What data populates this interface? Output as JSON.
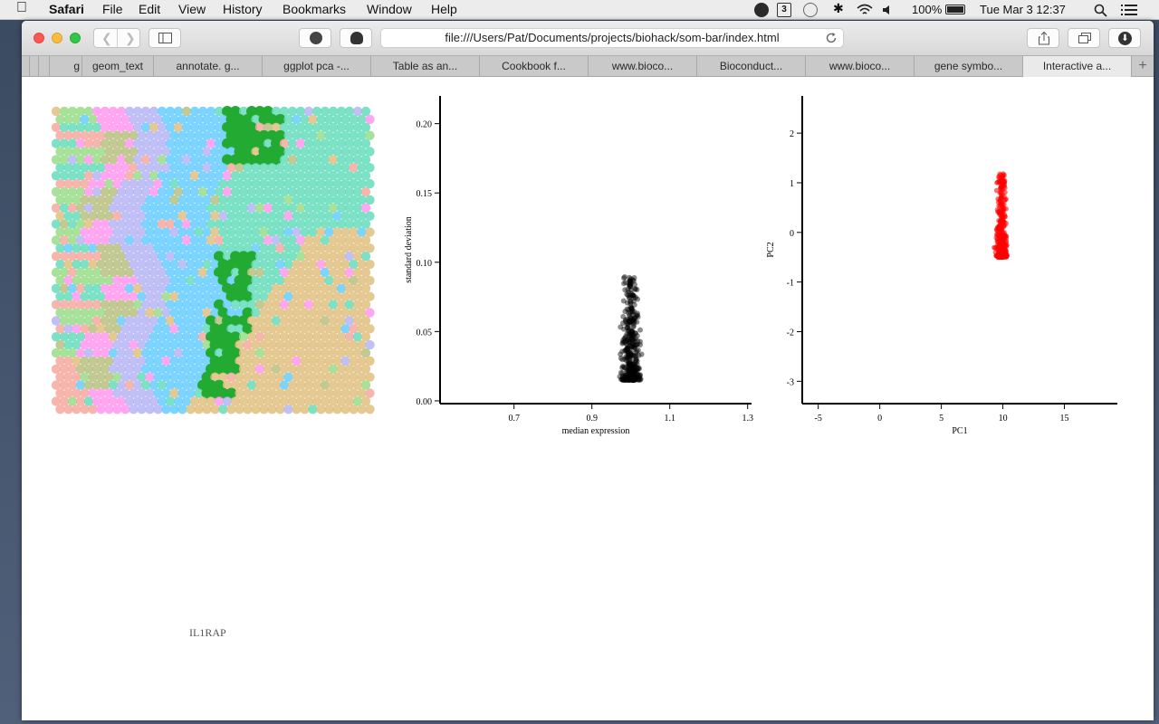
{
  "menubar": {
    "app": "Safari",
    "items": [
      "File",
      "Edit",
      "View",
      "History",
      "Bookmarks",
      "Window",
      "Help"
    ],
    "status_icons": [
      "grammarly-icon",
      "calendar-badge-icon",
      "time-machine-icon",
      "bluetooth-icon",
      "wifi-icon",
      "volume-icon"
    ],
    "calendar_badge": "3",
    "battery": "100%",
    "clock": "Tue Mar 3  12:37"
  },
  "toolbar": {
    "url": "file:///Users/Pat/Documents/projects/biohack/som-bar/index.html"
  },
  "tabs": [
    {
      "label": "g"
    },
    {
      "label": "geom_text"
    },
    {
      "label": "annotate. g..."
    },
    {
      "label": "ggplot pca -..."
    },
    {
      "label": "Table as an..."
    },
    {
      "label": "Cookbook f..."
    },
    {
      "label": "www.bioco..."
    },
    {
      "label": "Bioconduct..."
    },
    {
      "label": "www.bioco..."
    },
    {
      "label": "gene symbo..."
    },
    {
      "label": "Interactive a..."
    }
  ],
  "som": {
    "palette": [
      "#f5a9a0",
      "#ff99ee",
      "#b5b5f5",
      "#66ccff",
      "#66ddbb",
      "#b8c080",
      "#99dd88",
      "#e0c080"
    ],
    "highlight_color": "#22aa33",
    "hovered_gene": "IL1RAP"
  },
  "chart_data": [
    {
      "type": "scatter",
      "xlabel": "median expression",
      "ylabel": "standard deviation",
      "xticks": [
        0.7,
        0.9,
        1.1,
        1.3
      ],
      "yticks": [
        0.0,
        0.05,
        0.1,
        0.15,
        0.2
      ],
      "xlim": [
        0.51,
        1.31
      ],
      "ylim": [
        -0.002,
        0.22
      ],
      "color": "#000000",
      "cluster": {
        "x_center": 1.0,
        "x_spread": 0.02,
        "y_range": [
          0.015,
          0.09
        ],
        "n_points": 380
      }
    },
    {
      "type": "scatter",
      "xlabel": "PC1",
      "ylabel": "PC2",
      "xticks": [
        -5,
        0,
        5,
        10,
        15
      ],
      "yticks": [
        2,
        1,
        0,
        -1,
        -2,
        -3
      ],
      "xlim": [
        -6.3,
        19.3
      ],
      "ylim": [
        -3.45,
        2.75
      ],
      "color": "#ff0000",
      "cluster": {
        "x_center": 9.9,
        "x_spread": 0.4,
        "y_range": [
          -0.5,
          1.2
        ],
        "n_points": 300
      }
    }
  ]
}
